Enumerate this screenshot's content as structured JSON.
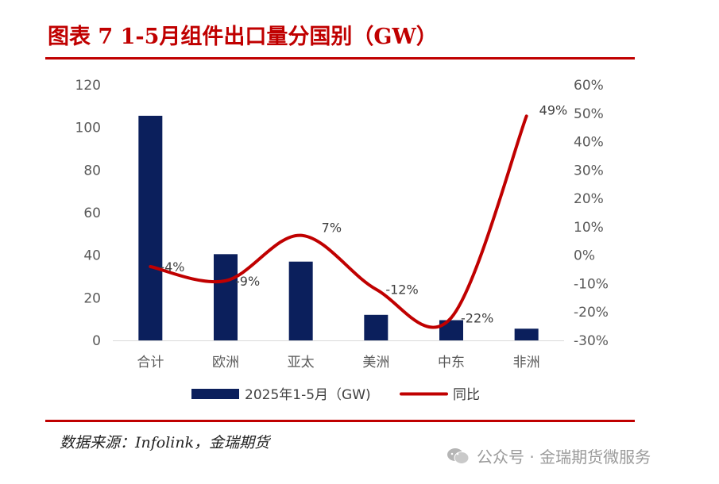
{
  "header": {
    "title": "图表 7 1-5月组件出口量分国别（GW）"
  },
  "footer": {
    "source": "数据来源：Infolink，金瑞期货",
    "watermark": "公众号 · 金瑞期货微服务"
  },
  "colors": {
    "bar": "#0b1f5c",
    "line": "#c00000",
    "rule": "#c00000"
  },
  "chart_data": {
    "type": "bar",
    "categories": [
      "合计",
      "欧洲",
      "亚太",
      "美洲",
      "中东",
      "非洲"
    ],
    "series": [
      {
        "name": "2025年1-5月（GW)",
        "type": "bar",
        "axis": "left",
        "values": [
          105.5,
          40.5,
          37,
          12,
          9.5,
          5.5
        ]
      },
      {
        "name": "同比",
        "type": "line",
        "axis": "right",
        "values": [
          -4,
          -9,
          7,
          -12,
          -22,
          49
        ],
        "labels": [
          "-4%",
          "-9%",
          "7%",
          "-12%",
          "-22%",
          "49%"
        ]
      }
    ],
    "y_left": {
      "range": [
        0,
        120
      ],
      "ticks": [
        "0",
        "20",
        "40",
        "60",
        "80",
        "100",
        "120"
      ]
    },
    "y_right": {
      "range": [
        -30,
        60
      ],
      "ticks": [
        "-30%",
        "-20%",
        "-10%",
        "0%",
        "10%",
        "20%",
        "30%",
        "40%",
        "50%",
        "60%"
      ]
    },
    "grid": false,
    "legend": "bottom"
  }
}
